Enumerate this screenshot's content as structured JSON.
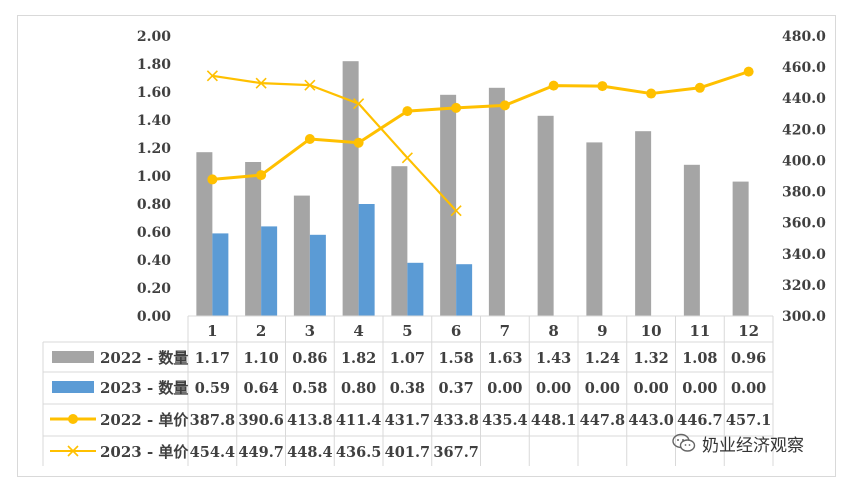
{
  "chart_data": {
    "type": "bar",
    "categories": [
      "1",
      "2",
      "3",
      "4",
      "5",
      "6",
      "7",
      "8",
      "9",
      "10",
      "11",
      "12"
    ],
    "left_axis": {
      "min": 0,
      "max": 2.0,
      "step": 0.2,
      "decimals": 2
    },
    "right_axis": {
      "min": 300,
      "max": 480,
      "step": 20,
      "decimals": 1
    },
    "series": [
      {
        "name": "2022 - 数量",
        "kind": "bar",
        "axis": "left",
        "color": "#a5a5a5",
        "values": [
          1.17,
          1.1,
          0.86,
          1.82,
          1.07,
          1.58,
          1.63,
          1.43,
          1.24,
          1.32,
          1.08,
          0.96
        ],
        "table": [
          "1.17",
          "1.10",
          "0.86",
          "1.82",
          "1.07",
          "1.58",
          "1.63",
          "1.43",
          "1.24",
          "1.32",
          "1.08",
          "0.96"
        ]
      },
      {
        "name": "2023 - 数量",
        "kind": "bar",
        "axis": "left",
        "color": "#5b9bd5",
        "values": [
          0.59,
          0.64,
          0.58,
          0.8,
          0.38,
          0.37,
          0.0,
          0.0,
          0.0,
          0.0,
          0.0,
          0.0
        ],
        "table": [
          "0.59",
          "0.64",
          "0.58",
          "0.80",
          "0.38",
          "0.37",
          "0.00",
          "0.00",
          "0.00",
          "0.00",
          "0.00",
          "0.00"
        ]
      },
      {
        "name": "2022 - 单价",
        "kind": "line",
        "marker": "circle",
        "axis": "right",
        "color": "#ffc000",
        "values": [
          387.8,
          390.6,
          413.8,
          411.4,
          431.7,
          433.8,
          435.4,
          448.1,
          447.8,
          443.0,
          446.7,
          457.1
        ],
        "table": [
          "387.8",
          "390.6",
          "413.8",
          "411.4",
          "431.7",
          "433.8",
          "435.4",
          "448.1",
          "447.8",
          "443.0",
          "446.7",
          "457.1"
        ]
      },
      {
        "name": "2023 - 单价",
        "kind": "line",
        "marker": "x",
        "axis": "right",
        "color": "#ffc000",
        "values": [
          454.4,
          449.7,
          448.4,
          436.5,
          401.7,
          367.7,
          null,
          null,
          null,
          null,
          null,
          null
        ],
        "table": [
          "454.4",
          "449.7",
          "448.4",
          "436.5",
          "401.7",
          "367.7",
          "",
          "",
          "",
          "",
          "",
          ""
        ]
      }
    ],
    "legend": "data-table",
    "grid": false
  },
  "watermark": {
    "text": "奶业经济观察"
  }
}
